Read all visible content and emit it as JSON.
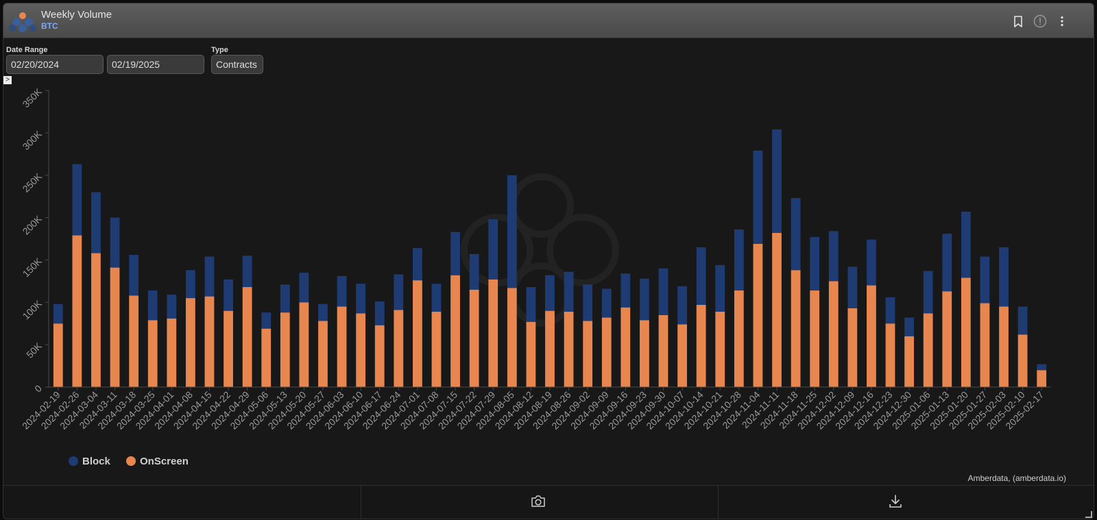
{
  "header": {
    "title": "Weekly Volume",
    "subtitle": "BTC",
    "icons": [
      "bookmark-icon",
      "info-icon",
      "more-vertical-icon"
    ]
  },
  "controls": {
    "date_range_label": "Date Range",
    "start_date": "02/20/2024",
    "end_date": "02/19/2025",
    "type_label": "Type",
    "type_value": "Contracts"
  },
  "toggle_label": ">",
  "credit": "Amberdata, (amberdata.io)",
  "colors": {
    "block": "#1f3b73",
    "onscreen": "#e8864f"
  },
  "chart_data": {
    "type": "bar",
    "stacked": true,
    "categories": [
      "2024-02-19",
      "2024-02-26",
      "2024-03-04",
      "2024-03-11",
      "2024-03-18",
      "2024-03-25",
      "2024-04-01",
      "2024-04-08",
      "2024-04-15",
      "2024-04-22",
      "2024-04-29",
      "2024-05-06",
      "2024-05-13",
      "2024-05-20",
      "2024-05-27",
      "2024-06-03",
      "2024-06-10",
      "2024-06-17",
      "2024-06-24",
      "2024-07-01",
      "2024-07-08",
      "2024-07-15",
      "2024-07-22",
      "2024-07-29",
      "2024-08-05",
      "2024-08-12",
      "2024-08-19",
      "2024-08-26",
      "2024-09-02",
      "2024-09-09",
      "2024-09-16",
      "2024-09-23",
      "2024-09-30",
      "2024-10-07",
      "2024-10-14",
      "2024-10-21",
      "2024-10-28",
      "2024-11-04",
      "2024-11-11",
      "2024-11-18",
      "2024-11-25",
      "2024-12-02",
      "2024-12-09",
      "2024-12-16",
      "2024-12-23",
      "2024-12-30",
      "2025-01-06",
      "2025-01-13",
      "2025-01-20",
      "2025-01-27",
      "2025-02-03",
      "2025-02-10",
      "2025-02-17"
    ],
    "series": [
      {
        "name": "OnScreen",
        "values": [
          75000,
          179000,
          158000,
          141000,
          108000,
          79000,
          81000,
          105000,
          107000,
          90000,
          118000,
          69000,
          88000,
          100000,
          78000,
          95000,
          87000,
          73000,
          91000,
          126000,
          89000,
          132000,
          115000,
          127000,
          117000,
          77000,
          90000,
          89000,
          78000,
          82000,
          94000,
          79000,
          85000,
          74000,
          97000,
          89000,
          114000,
          169000,
          182000,
          138000,
          114000,
          125000,
          93000,
          120000,
          75000,
          60000,
          87000,
          113000,
          129000,
          99000,
          95000,
          62000,
          20000
        ]
      },
      {
        "name": "Block",
        "values": [
          23000,
          84000,
          72000,
          59000,
          48000,
          35000,
          28000,
          33000,
          47000,
          37000,
          37000,
          19000,
          33000,
          35000,
          20000,
          36000,
          35000,
          28000,
          42000,
          38000,
          33000,
          51000,
          42000,
          71000,
          133000,
          41000,
          42000,
          47000,
          43000,
          34000,
          40000,
          49000,
          55000,
          45000,
          68000,
          55000,
          72000,
          110000,
          122000,
          85000,
          63000,
          59000,
          49000,
          54000,
          31000,
          22000,
          50000,
          68000,
          78000,
          55000,
          70000,
          33000,
          7000
        ]
      }
    ],
    "y_ticks": [
      "0",
      "50K",
      "100K",
      "150K",
      "200K",
      "250K",
      "300K",
      "350K"
    ],
    "ylim": [
      0,
      350000
    ],
    "legend": [
      {
        "label": "Block",
        "color": "#1f3b73"
      },
      {
        "label": "OnScreen",
        "color": "#e8864f"
      }
    ],
    "legend_position": "bottom-left",
    "grid": false
  }
}
